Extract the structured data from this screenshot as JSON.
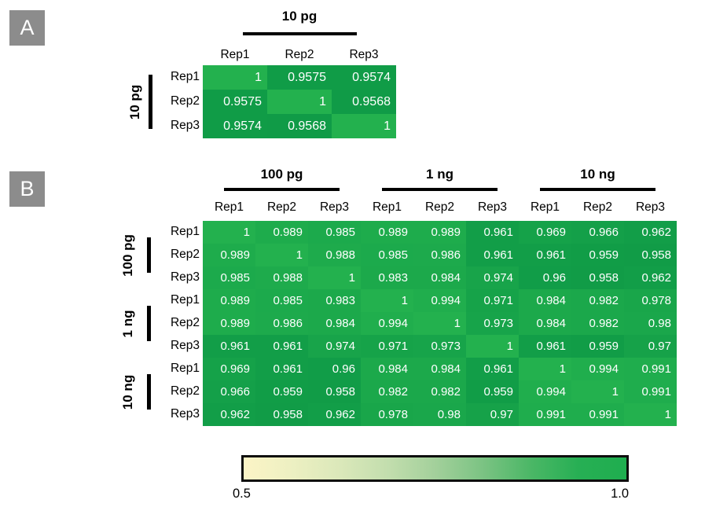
{
  "figure": {
    "panel_a": {
      "badge": "A",
      "col_group_labels": [
        "10 pg"
      ],
      "col_headers": [
        "Rep1",
        "Rep2",
        "Rep3"
      ],
      "row_group_labels": [
        "10 pg"
      ],
      "row_headers": [
        "Rep1",
        "Rep2",
        "Rep3"
      ],
      "cells": [
        [
          "1",
          "0.9575",
          "0.9574"
        ],
        [
          "0.9575",
          "1",
          "0.9568"
        ],
        [
          "0.9574",
          "0.9568",
          "1"
        ]
      ]
    },
    "panel_b": {
      "badge": "B",
      "col_group_labels": [
        "100 pg",
        "1 ng",
        "10 ng"
      ],
      "col_headers": [
        "Rep1",
        "Rep2",
        "Rep3",
        "Rep1",
        "Rep2",
        "Rep3",
        "Rep1",
        "Rep2",
        "Rep3"
      ],
      "row_group_labels": [
        "100 pg",
        "1 ng",
        "10 ng"
      ],
      "row_headers": [
        "Rep1",
        "Rep2",
        "Rep3",
        "Rep1",
        "Rep2",
        "Rep3",
        "Rep1",
        "Rep2",
        "Rep3"
      ],
      "cells": [
        [
          "1",
          "0.989",
          "0.985",
          "0.989",
          "0.989",
          "0.961",
          "0.969",
          "0.966",
          "0.962"
        ],
        [
          "0.989",
          "1",
          "0.988",
          "0.985",
          "0.986",
          "0.961",
          "0.961",
          "0.959",
          "0.958"
        ],
        [
          "0.985",
          "0.988",
          "1",
          "0.983",
          "0.984",
          "0.974",
          "0.96",
          "0.958",
          "0.962"
        ],
        [
          "0.989",
          "0.985",
          "0.983",
          "1",
          "0.994",
          "0.971",
          "0.984",
          "0.982",
          "0.978"
        ],
        [
          "0.989",
          "0.986",
          "0.984",
          "0.994",
          "1",
          "0.973",
          "0.984",
          "0.982",
          "0.98"
        ],
        [
          "0.961",
          "0.961",
          "0.974",
          "0.971",
          "0.973",
          "1",
          "0.961",
          "0.959",
          "0.97"
        ],
        [
          "0.969",
          "0.961",
          "0.96",
          "0.984",
          "0.984",
          "0.961",
          "1",
          "0.994",
          "0.991"
        ],
        [
          "0.966",
          "0.959",
          "0.958",
          "0.982",
          "0.982",
          "0.959",
          "0.994",
          "1",
          "0.991"
        ],
        [
          "0.962",
          "0.958",
          "0.962",
          "0.978",
          "0.98",
          "0.97",
          "0.991",
          "0.991",
          "1"
        ]
      ]
    },
    "colorbar": {
      "min_label": "0.5",
      "max_label": "1.0",
      "stops": [
        "#FCF4C6",
        "#EDF0C2",
        "#DBE8BA",
        "#C3DEAE",
        "#A3D09B",
        "#7BC383",
        "#4BB766",
        "#27AF54",
        "#1FAE4F"
      ]
    }
  },
  "colors": {
    "badge_bg": "#8C8C8C",
    "badge_text": "#FFFFFF",
    "text": "#000000",
    "cell_text": "#FFFFFF",
    "cell_gradient": [
      {
        "value": 0.5,
        "color": "#FCF4C7"
      },
      {
        "value": 0.95,
        "color": "#0D9846"
      },
      {
        "value": 1.0,
        "color": "#23B14E"
      }
    ]
  },
  "chart_data": [
    {
      "type": "heatmap",
      "panel": "A",
      "title": "",
      "col_group": "10 pg",
      "row_group": "10 pg",
      "x_categories": [
        "Rep1",
        "Rep2",
        "Rep3"
      ],
      "y_categories": [
        "Rep1",
        "Rep2",
        "Rep3"
      ],
      "values": [
        [
          1,
          0.9575,
          0.9574
        ],
        [
          0.9575,
          1,
          0.9568
        ],
        [
          0.9574,
          0.9568,
          1
        ]
      ],
      "colorscale": {
        "min": 0.5,
        "max": 1.0,
        "min_color": "#FCF4C7",
        "max_color": "#23B14E"
      }
    },
    {
      "type": "heatmap",
      "panel": "B",
      "title": "",
      "col_groups": [
        "100 pg",
        "1 ng",
        "10 ng"
      ],
      "row_groups": [
        "100 pg",
        "1 ng",
        "10 ng"
      ],
      "x_categories": [
        "Rep1",
        "Rep2",
        "Rep3",
        "Rep1",
        "Rep2",
        "Rep3",
        "Rep1",
        "Rep2",
        "Rep3"
      ],
      "y_categories": [
        "Rep1",
        "Rep2",
        "Rep3",
        "Rep1",
        "Rep2",
        "Rep3",
        "Rep1",
        "Rep2",
        "Rep3"
      ],
      "values": [
        [
          1,
          0.989,
          0.985,
          0.989,
          0.989,
          0.961,
          0.969,
          0.966,
          0.962
        ],
        [
          0.989,
          1,
          0.988,
          0.985,
          0.986,
          0.961,
          0.961,
          0.959,
          0.958
        ],
        [
          0.985,
          0.988,
          1,
          0.983,
          0.984,
          0.974,
          0.96,
          0.958,
          0.962
        ],
        [
          0.989,
          0.985,
          0.983,
          1,
          0.994,
          0.971,
          0.984,
          0.982,
          0.978
        ],
        [
          0.989,
          0.986,
          0.984,
          0.994,
          1,
          0.973,
          0.984,
          0.982,
          0.98
        ],
        [
          0.961,
          0.961,
          0.974,
          0.971,
          0.973,
          1,
          0.961,
          0.959,
          0.97
        ],
        [
          0.969,
          0.961,
          0.96,
          0.984,
          0.984,
          0.961,
          1,
          0.994,
          0.991
        ],
        [
          0.966,
          0.959,
          0.958,
          0.982,
          0.982,
          0.959,
          0.994,
          1,
          0.991
        ],
        [
          0.962,
          0.958,
          0.962,
          0.978,
          0.98,
          0.97,
          0.991,
          0.991,
          1
        ]
      ],
      "colorscale": {
        "min": 0.5,
        "max": 1.0,
        "min_color": "#FCF4C7",
        "max_color": "#23B14E"
      }
    },
    {
      "type": "colorbar",
      "orientation": "horizontal",
      "range": [
        0.5,
        1.0
      ],
      "tick_labels": [
        "0.5",
        "1.0"
      ]
    }
  ]
}
